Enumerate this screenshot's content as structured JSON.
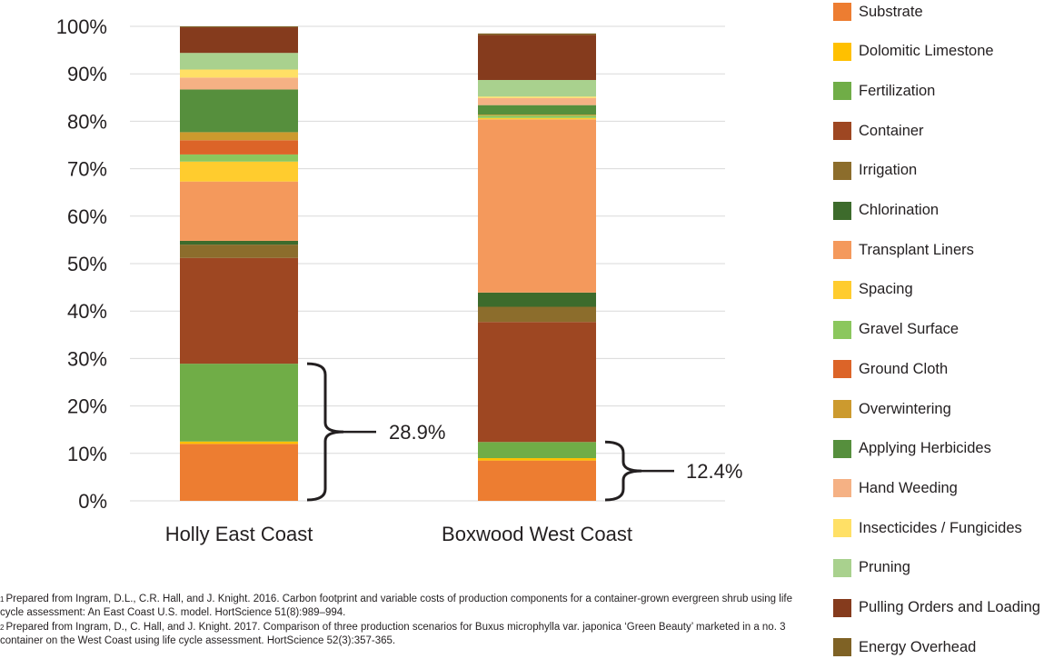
{
  "chart_data": {
    "type": "bar",
    "stacked": true,
    "orientation": "vertical",
    "ylim": [
      0,
      100
    ],
    "yticks": [
      "0%",
      "10%",
      "20%",
      "30%",
      "40%",
      "50%",
      "60%",
      "70%",
      "80%",
      "90%",
      "100%"
    ],
    "grid": true,
    "legend_position": "right",
    "categories": [
      "Holly East Coast",
      "Boxwood West Coast"
    ],
    "series": [
      {
        "name": "Substrate",
        "color": "#ed7d31",
        "values": [
          12.0,
          8.5
        ]
      },
      {
        "name": "Dolomitic Limestone",
        "color": "#ffc000",
        "values": [
          0.5,
          0.5
        ]
      },
      {
        "name": "Fertilization",
        "color": "#70ad47",
        "values": [
          16.4,
          3.4
        ]
      },
      {
        "name": "Container",
        "color": "#9e4722",
        "values": [
          22.3,
          25.3
        ]
      },
      {
        "name": "Irrigation",
        "color": "#8c6d2c",
        "values": [
          2.8,
          3.2
        ]
      },
      {
        "name": "Chlorination",
        "color": "#3d6b2c",
        "values": [
          0.8,
          3.0
        ]
      },
      {
        "name": "Transplant Liners",
        "color": "#f4995c",
        "values": [
          12.5,
          36.5
        ]
      },
      {
        "name": "Spacing",
        "color": "#ffcc2e",
        "values": [
          4.2,
          0.3
        ]
      },
      {
        "name": "Gravel Surface",
        "color": "#8bc75d",
        "values": [
          1.5,
          0.5
        ]
      },
      {
        "name": "Ground Cloth",
        "color": "#dc6428",
        "values": [
          3.0,
          0.0
        ]
      },
      {
        "name": "Overwintering",
        "color": "#cc9a2e",
        "values": [
          1.7,
          0.2
        ]
      },
      {
        "name": "Applying Herbicides",
        "color": "#568f3d",
        "values": [
          9.0,
          2.0
        ]
      },
      {
        "name": "Hand Weeding",
        "color": "#f5b184",
        "values": [
          2.5,
          1.5
        ]
      },
      {
        "name": "Insecticides / Fungicides",
        "color": "#ffe066",
        "values": [
          1.7,
          0.3
        ]
      },
      {
        "name": "Pruning",
        "color": "#a9d18e",
        "values": [
          3.5,
          3.5
        ]
      },
      {
        "name": "Pulling Orders and Loading",
        "color": "#853b1d",
        "values": [
          5.4,
          9.5
        ]
      },
      {
        "name": "Energy Overhead",
        "color": "#7f6225",
        "values": [
          0.2,
          0.3
        ]
      }
    ],
    "annotations": [
      {
        "category": "Holly East Coast",
        "text": "28.9%",
        "from": 0,
        "to": 28.9
      },
      {
        "category": "Boxwood West Coast",
        "text": "12.4%",
        "from": 0,
        "to": 12.4
      }
    ]
  },
  "legend_items": [
    {
      "label": "Substrate",
      "color": "#ed7d31"
    },
    {
      "label": "Dolomitic Limestone",
      "color": "#ffc000"
    },
    {
      "label": "Fertilization",
      "color": "#70ad47"
    },
    {
      "label": "Container",
      "color": "#9e4722"
    },
    {
      "label": "Irrigation",
      "color": "#8c6d2c"
    },
    {
      "label": "Chlorination",
      "color": "#3d6b2c"
    },
    {
      "label": "Transplant Liners",
      "color": "#f4995c"
    },
    {
      "label": "Spacing",
      "color": "#ffcc2e"
    },
    {
      "label": "Gravel Surface",
      "color": "#8bc75d"
    },
    {
      "label": "Ground Cloth",
      "color": "#dc6428"
    },
    {
      "label": "Overwintering",
      "color": "#cc9a2e"
    },
    {
      "label": "Applying Herbicides",
      "color": "#568f3d"
    },
    {
      "label": "Hand Weeding",
      "color": "#f5b184"
    },
    {
      "label": "Insecticides / Fungicides",
      "color": "#ffe066"
    },
    {
      "label": "Pruning",
      "color": "#a9d18e"
    },
    {
      "label": "Pulling Orders and Loading",
      "color": "#853b1d"
    },
    {
      "label": "Energy Overhead",
      "color": "#7f6225"
    }
  ],
  "footnotes": [
    {
      "mark": "1",
      "text": "Prepared from Ingram, D.L., C.R. Hall, and J. Knight. 2016. Carbon footprint and variable costs of production components for a container-grown evergreen shrub using life cycle assessment: An East Coast U.S. model. HortScience 51(8):989–994."
    },
    {
      "mark": "2",
      "text": "Prepared from Ingram, D., C. Hall, and J. Knight. 2017. Comparison of three production scenarios for Buxus microphylla var. japonica ‘Green Beauty’ marketed in a no. 3 container on the West Coast using life cycle assessment. HortScience 52(3):357-365."
    }
  ]
}
